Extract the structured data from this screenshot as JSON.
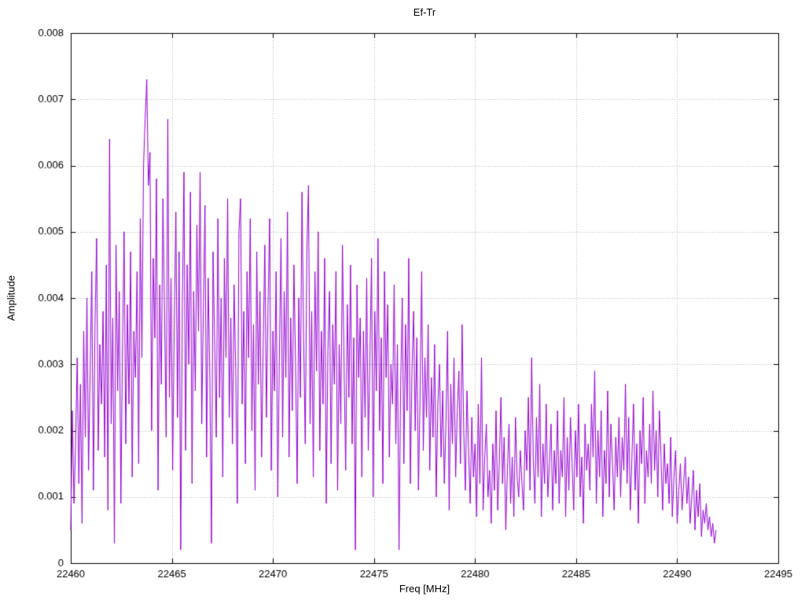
{
  "chart_data": {
    "type": "line",
    "title": "Ef-Tr",
    "xlabel": "Freq [MHz]",
    "ylabel": "Amplitude",
    "xlim": [
      22460,
      22495
    ],
    "ylim": [
      0,
      0.008
    ],
    "x_ticks": [
      22460,
      22465,
      22470,
      22475,
      22480,
      22485,
      22490,
      22495
    ],
    "x_tick_labels": [
      "22460",
      "22465",
      "22470",
      "22475",
      "22480",
      "22485",
      "22490",
      "22495"
    ],
    "y_ticks": [
      0,
      0.001,
      0.002,
      0.003,
      0.004,
      0.005,
      0.006,
      0.007,
      0.008
    ],
    "y_tick_labels": [
      "0",
      "0.001",
      "0.002",
      "0.003",
      "0.004",
      "0.005",
      "0.006",
      "0.007",
      "0.008"
    ],
    "grid": true,
    "grid_style": "dotted",
    "grid_color": "#b3b3b3",
    "border_color": "#000000",
    "background_color": "#ffffff",
    "legend": "none",
    "line_color": "#9400D3",
    "series": [
      {
        "name": "Ef-Tr",
        "x_start": 22460,
        "x_step": 0.08,
        "y_scale": 0.0001,
        "values": [
          5,
          23,
          9,
          18,
          31,
          12,
          27,
          6,
          35,
          19,
          40,
          14,
          29,
          44,
          11,
          36,
          49,
          17,
          33,
          24,
          38,
          16,
          45,
          8,
          64,
          21,
          37,
          3,
          48,
          26,
          41,
          9,
          33,
          50,
          18,
          39,
          24,
          47,
          13,
          35,
          28,
          44,
          15,
          52,
          31,
          60,
          67,
          73,
          57,
          62,
          20,
          46,
          34,
          58,
          11,
          42,
          27,
          55,
          38,
          19,
          67,
          25,
          43,
          14,
          36,
          53,
          22,
          47,
          2,
          39,
          59,
          17,
          45,
          30,
          56,
          12,
          41,
          26,
          51,
          35,
          59,
          21,
          38,
          54,
          16,
          43,
          28,
          3,
          47,
          33,
          19,
          52,
          25,
          40,
          13,
          46,
          31,
          55,
          22,
          37,
          18,
          42,
          29,
          9,
          50,
          55,
          24,
          38,
          15,
          44,
          31,
          52,
          20,
          36,
          11,
          47,
          27,
          41,
          16,
          33,
          48,
          22,
          39,
          52,
          14,
          35,
          26,
          44,
          10,
          31,
          49,
          19,
          41,
          28,
          53,
          16,
          37,
          23,
          45,
          30,
          12,
          40,
          25,
          56,
          34,
          18,
          47,
          57,
          21,
          38,
          13,
          44,
          29,
          50,
          17,
          35,
          24,
          46,
          9,
          32,
          41,
          15,
          36,
          27,
          44,
          11,
          33,
          21,
          48,
          30,
          14,
          39,
          25,
          45,
          18,
          34,
          2,
          42,
          28,
          37,
          13,
          35,
          22,
          43,
          17,
          31,
          46,
          10,
          38,
          26,
          49,
          20,
          34,
          12,
          44,
          28,
          39,
          16,
          30,
          24,
          42,
          18,
          33,
          2,
          27,
          40,
          15,
          36,
          23,
          46,
          12,
          29,
          38,
          20,
          34,
          11,
          25,
          44,
          17,
          31,
          22,
          36,
          14,
          28,
          19,
          33,
          10,
          24,
          30,
          16,
          26,
          12,
          21,
          35,
          8,
          27,
          18,
          31,
          13,
          23,
          29,
          15,
          36,
          20,
          11,
          26,
          17,
          9,
          22,
          13,
          18,
          7,
          24,
          12,
          31,
          8,
          16,
          21,
          10,
          14,
          6,
          18,
          11,
          23,
          8,
          15,
          25,
          12,
          19,
          5,
          14,
          21,
          9,
          16,
          7,
          22,
          13,
          10,
          17,
          12,
          8,
          20,
          14,
          25,
          11,
          31,
          16,
          9,
          22,
          13,
          27,
          7,
          18,
          12,
          24,
          10,
          15,
          21,
          8,
          17,
          12,
          23,
          9,
          17,
          13,
          25,
          7,
          19,
          11,
          22,
          15,
          8,
          20,
          13,
          24,
          10,
          16,
          6,
          21,
          14,
          18,
          11,
          24,
          16,
          29,
          9,
          20,
          13,
          23,
          7,
          17,
          12,
          26,
          10,
          21,
          15,
          8,
          19,
          13,
          22,
          10,
          19,
          14,
          27,
          12,
          22,
          8,
          16,
          24,
          11,
          18,
          6,
          20,
          15,
          25,
          9,
          17,
          13,
          21,
          12,
          26,
          14,
          20,
          10,
          23,
          16,
          8,
          18,
          12,
          15,
          9,
          19,
          7,
          13,
          17,
          6,
          11,
          15,
          8,
          12,
          16,
          9,
          13,
          6,
          10,
          14,
          5,
          11,
          7,
          12,
          4,
          8,
          6,
          9,
          5,
          7,
          4,
          6,
          3,
          5
        ]
      }
    ]
  }
}
